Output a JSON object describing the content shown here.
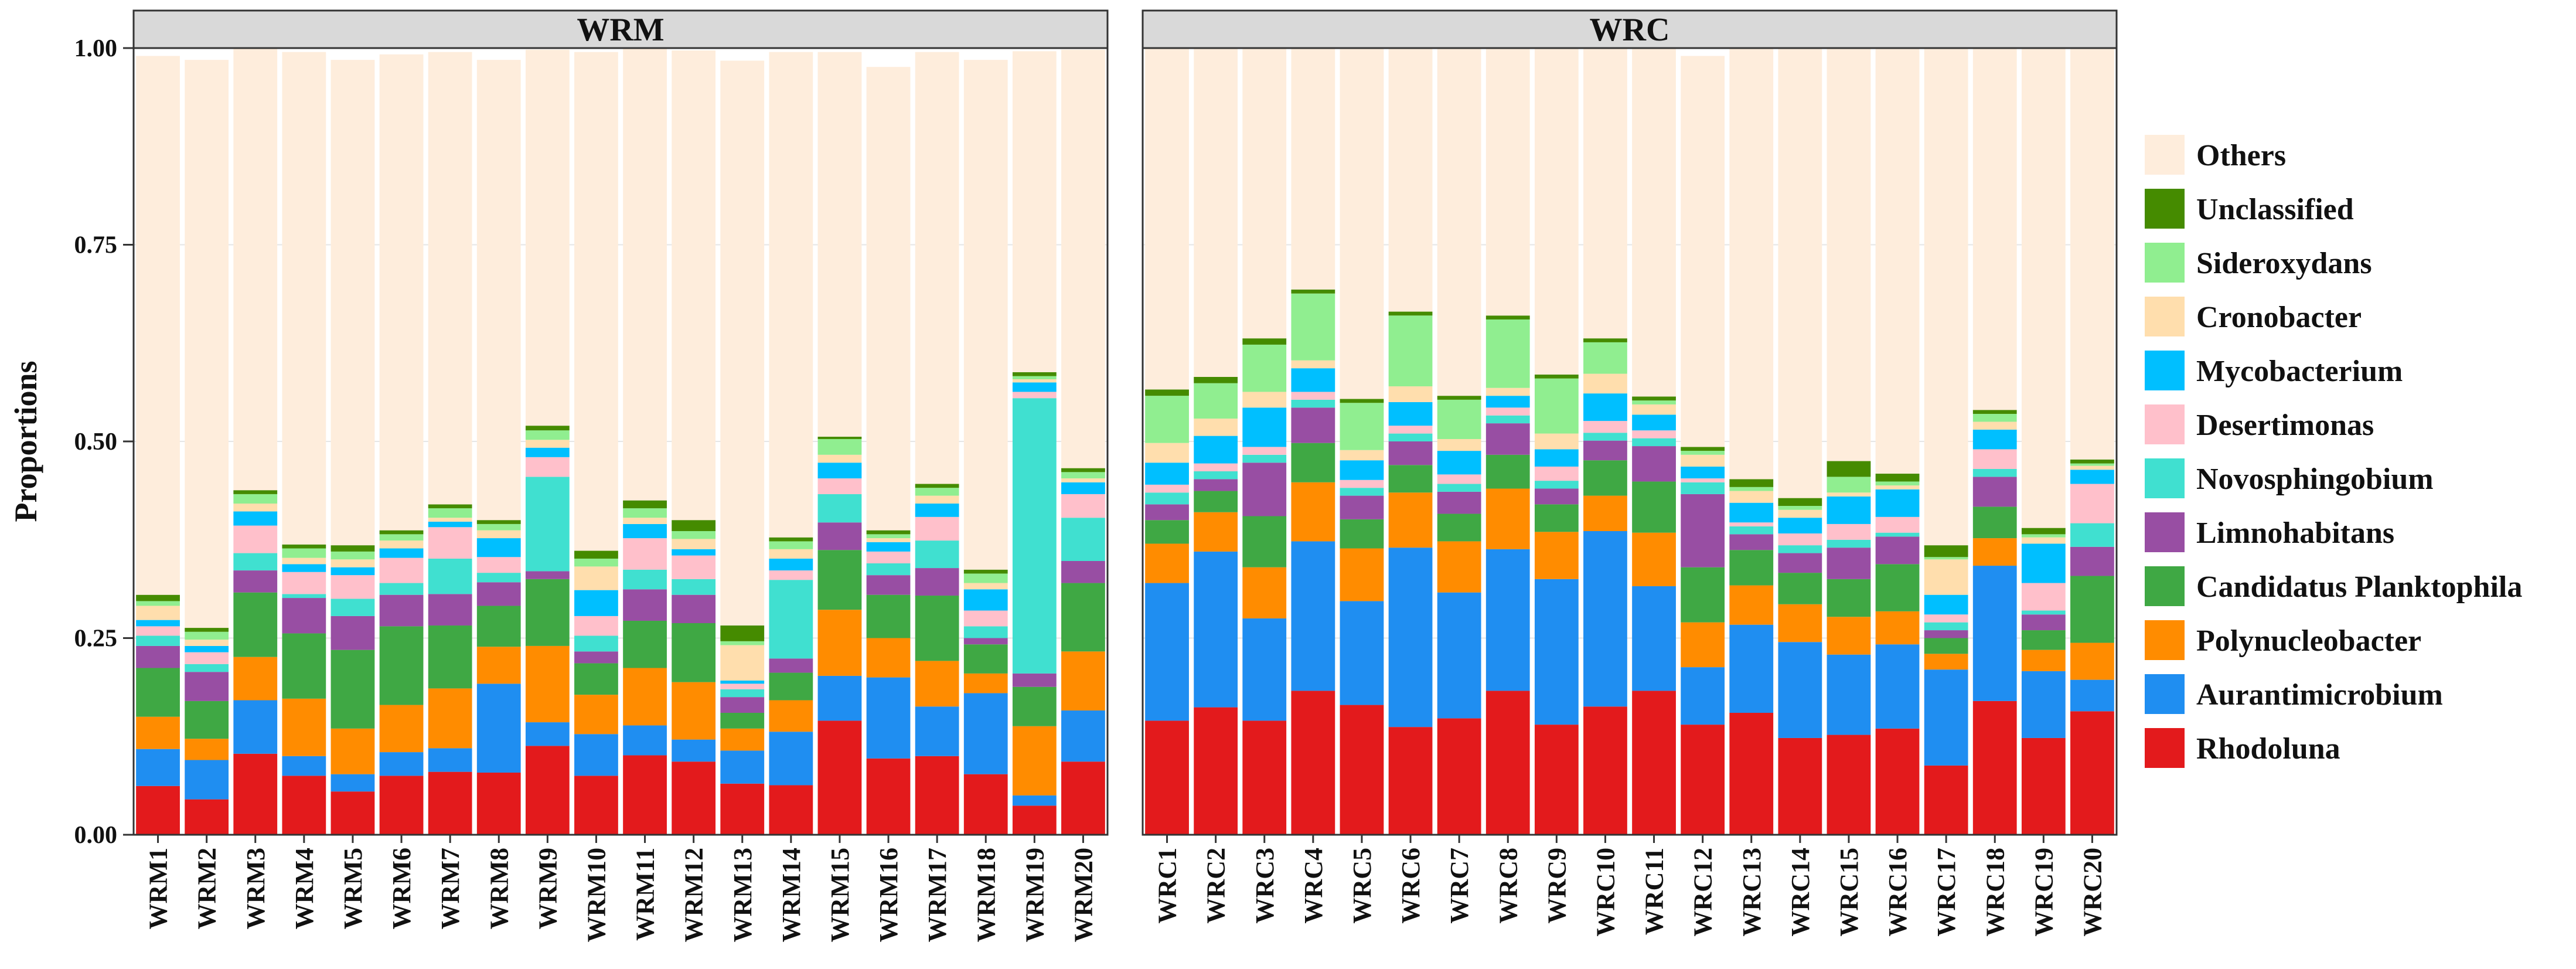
{
  "chart_data": {
    "type": "bar",
    "stacked": true,
    "ylabel": "Proportions",
    "ylim": [
      0,
      1
    ],
    "yticks": [
      "0.00",
      "0.25",
      "0.50",
      "0.75",
      "1.00"
    ],
    "legend_position": "right",
    "grid": true,
    "taxa": [
      "Rhodoluna",
      "Aurantimicrobium",
      "Polynucleobacter",
      "Candidatus Planktophila",
      "Limnohabitans",
      "Novosphingobium",
      "Desertimonas",
      "Mycobacterium",
      "Cronobacter",
      "Sideroxydans",
      "Unclassified",
      "Others"
    ],
    "legend_order": [
      "Others",
      "Unclassified",
      "Sideroxydans",
      "Cronobacter",
      "Mycobacterium",
      "Desertimonas",
      "Novosphingobium",
      "Limnohabitans",
      "Candidatus Planktophila",
      "Polynucleobacter",
      "Aurantimicrobium",
      "Rhodoluna"
    ],
    "colors": {
      "Rhodoluna": "#e31a1c",
      "Aurantimicrobium": "#1f8ef1",
      "Polynucleobacter": "#ff8c00",
      "Candidatus Planktophila": "#3fa844",
      "Limnohabitans": "#984ea3",
      "Novosphingobium": "#40e0d0",
      "Desertimonas": "#ffc0cb",
      "Mycobacterium": "#00bfff",
      "Cronobacter": "#ffdead",
      "Sideroxydans": "#90ee90",
      "Unclassified": "#458b00",
      "Others": "#feeddc"
    },
    "panels": [
      {
        "title": "WRM",
        "categories": [
          "WRM1",
          "WRM2",
          "WRM3",
          "WRM4",
          "WRM5",
          "WRM6",
          "WRM7",
          "WRM8",
          "WRM9",
          "WRM10",
          "WRM11",
          "WRM12",
          "WRM13",
          "WRM14",
          "WRM15",
          "WRM16",
          "WRM17",
          "WRM18",
          "WRM19",
          "WRM20"
        ],
        "series": [
          {
            "name": "Rhodoluna",
            "values": [
              0.062,
              0.045,
              0.103,
              0.075,
              0.055,
              0.075,
              0.08,
              0.079,
              0.113,
              0.075,
              0.101,
              0.093,
              0.065,
              0.063,
              0.145,
              0.097,
              0.1,
              0.077,
              0.037,
              0.093
            ]
          },
          {
            "name": "Aurantimicrobium",
            "values": [
              0.047,
              0.05,
              0.068,
              0.025,
              0.022,
              0.03,
              0.03,
              0.113,
              0.03,
              0.053,
              0.038,
              0.028,
              0.042,
              0.068,
              0.057,
              0.103,
              0.063,
              0.103,
              0.013,
              0.065
            ]
          },
          {
            "name": "Polynucleobacter",
            "values": [
              0.041,
              0.027,
              0.055,
              0.073,
              0.058,
              0.06,
              0.076,
              0.047,
              0.097,
              0.05,
              0.073,
              0.073,
              0.028,
              0.04,
              0.084,
              0.05,
              0.058,
              0.025,
              0.088,
              0.075
            ]
          },
          {
            "name": "Candidatus Planktophila",
            "values": [
              0.062,
              0.048,
              0.082,
              0.083,
              0.1,
              0.1,
              0.08,
              0.052,
              0.085,
              0.04,
              0.06,
              0.075,
              0.02,
              0.035,
              0.076,
              0.055,
              0.083,
              0.037,
              0.05,
              0.087
            ]
          },
          {
            "name": "Limnohabitans",
            "values": [
              0.028,
              0.037,
              0.028,
              0.045,
              0.043,
              0.04,
              0.04,
              0.03,
              0.01,
              0.015,
              0.04,
              0.036,
              0.02,
              0.018,
              0.035,
              0.025,
              0.035,
              0.008,
              0.017,
              0.028
            ]
          },
          {
            "name": "Novosphingobium",
            "values": [
              0.013,
              0.01,
              0.022,
              0.005,
              0.022,
              0.015,
              0.045,
              0.012,
              0.12,
              0.02,
              0.025,
              0.02,
              0.01,
              0.1,
              0.036,
              0.015,
              0.035,
              0.015,
              0.35,
              0.055
            ]
          },
          {
            "name": "Desertimonas",
            "values": [
              0.012,
              0.015,
              0.035,
              0.028,
              0.03,
              0.032,
              0.04,
              0.02,
              0.025,
              0.025,
              0.04,
              0.03,
              0.007,
              0.012,
              0.02,
              0.015,
              0.03,
              0.02,
              0.008,
              0.03
            ]
          },
          {
            "name": "Mycobacterium",
            "values": [
              0.008,
              0.008,
              0.018,
              0.01,
              0.01,
              0.012,
              0.007,
              0.024,
              0.012,
              0.033,
              0.018,
              0.008,
              0.004,
              0.015,
              0.02,
              0.012,
              0.017,
              0.027,
              0.012,
              0.015
            ]
          },
          {
            "name": "Cronobacter",
            "values": [
              0.018,
              0.008,
              0.01,
              0.008,
              0.01,
              0.01,
              0.005,
              0.01,
              0.01,
              0.03,
              0.008,
              0.013,
              0.045,
              0.012,
              0.01,
              0.005,
              0.01,
              0.008,
              0.004,
              0.005
            ]
          },
          {
            "name": "Sideroxydans",
            "values": [
              0.006,
              0.01,
              0.012,
              0.012,
              0.01,
              0.008,
              0.012,
              0.008,
              0.012,
              0.01,
              0.012,
              0.01,
              0.005,
              0.01,
              0.02,
              0.005,
              0.01,
              0.012,
              0.004,
              0.008
            ]
          },
          {
            "name": "Unclassified",
            "values": [
              0.008,
              0.005,
              0.005,
              0.005,
              0.008,
              0.005,
              0.005,
              0.005,
              0.006,
              0.01,
              0.01,
              0.014,
              0.02,
              0.005,
              0.003,
              0.005,
              0.005,
              0.005,
              0.005,
              0.005
            ]
          },
          {
            "name": "Others",
            "values": [
              0.685,
              0.722,
              0.562,
              0.626,
              0.617,
              0.605,
              0.575,
              0.585,
              0.478,
              0.634,
              0.575,
              0.597,
              0.718,
              0.617,
              0.489,
              0.589,
              0.549,
              0.648,
              0.408,
              0.532
            ]
          }
        ]
      },
      {
        "title": "WRC",
        "categories": [
          "WRC1",
          "WRC2",
          "WRC3",
          "WRC4",
          "WRC5",
          "WRC6",
          "WRC7",
          "WRC8",
          "WRC9",
          "WRC10",
          "WRC11",
          "WRC12",
          "WRC13",
          "WRC14",
          "WRC15",
          "WRC16",
          "WRC17",
          "WRC18",
          "WRC19",
          "WRC20"
        ],
        "series": [
          {
            "name": "Rhodoluna",
            "values": [
              0.145,
              0.162,
              0.145,
              0.183,
              0.165,
              0.137,
              0.148,
              0.183,
              0.14,
              0.163,
              0.183,
              0.14,
              0.155,
              0.123,
              0.127,
              0.135,
              0.088,
              0.17,
              0.123,
              0.157
            ]
          },
          {
            "name": "Aurantimicrobium",
            "values": [
              0.175,
              0.198,
              0.13,
              0.19,
              0.132,
              0.228,
              0.16,
              0.18,
              0.185,
              0.223,
              0.133,
              0.073,
              0.112,
              0.122,
              0.102,
              0.107,
              0.122,
              0.172,
              0.085,
              0.04
            ]
          },
          {
            "name": "Polynucleobacter",
            "values": [
              0.05,
              0.05,
              0.065,
              0.075,
              0.067,
              0.07,
              0.065,
              0.077,
              0.06,
              0.045,
              0.068,
              0.057,
              0.05,
              0.048,
              0.048,
              0.042,
              0.02,
              0.035,
              0.027,
              0.047
            ]
          },
          {
            "name": "Candidatus Planktophila",
            "values": [
              0.03,
              0.027,
              0.065,
              0.05,
              0.037,
              0.035,
              0.035,
              0.043,
              0.035,
              0.045,
              0.065,
              0.07,
              0.045,
              0.04,
              0.048,
              0.06,
              0.02,
              0.04,
              0.025,
              0.085
            ]
          },
          {
            "name": "Limnohabitans",
            "values": [
              0.02,
              0.015,
              0.068,
              0.045,
              0.03,
              0.03,
              0.028,
              0.04,
              0.02,
              0.025,
              0.045,
              0.093,
              0.02,
              0.025,
              0.04,
              0.035,
              0.01,
              0.038,
              0.02,
              0.037
            ]
          },
          {
            "name": "Novosphingobium",
            "values": [
              0.015,
              0.01,
              0.01,
              0.01,
              0.01,
              0.01,
              0.01,
              0.01,
              0.01,
              0.01,
              0.01,
              0.015,
              0.01,
              0.01,
              0.01,
              0.005,
              0.01,
              0.01,
              0.005,
              0.03
            ]
          },
          {
            "name": "Desertimonas",
            "values": [
              0.01,
              0.01,
              0.01,
              0.01,
              0.01,
              0.01,
              0.012,
              0.01,
              0.018,
              0.015,
              0.01,
              0.005,
              0.005,
              0.015,
              0.02,
              0.02,
              0.01,
              0.025,
              0.035,
              0.05
            ]
          },
          {
            "name": "Mycobacterium",
            "values": [
              0.028,
              0.035,
              0.05,
              0.03,
              0.025,
              0.03,
              0.03,
              0.015,
              0.022,
              0.035,
              0.02,
              0.015,
              0.025,
              0.02,
              0.035,
              0.035,
              0.025,
              0.025,
              0.05,
              0.018
            ]
          },
          {
            "name": "Cronobacter",
            "values": [
              0.025,
              0.022,
              0.02,
              0.01,
              0.013,
              0.02,
              0.015,
              0.01,
              0.02,
              0.025,
              0.013,
              0.015,
              0.015,
              0.01,
              0.005,
              0.005,
              0.045,
              0.01,
              0.008,
              0.005
            ]
          },
          {
            "name": "Sideroxydans",
            "values": [
              0.06,
              0.045,
              0.06,
              0.085,
              0.06,
              0.09,
              0.05,
              0.087,
              0.07,
              0.04,
              0.005,
              0.005,
              0.005,
              0.005,
              0.02,
              0.005,
              0.003,
              0.01,
              0.004,
              0.003
            ]
          },
          {
            "name": "Unclassified",
            "values": [
              0.008,
              0.008,
              0.008,
              0.005,
              0.005,
              0.005,
              0.005,
              0.005,
              0.005,
              0.005,
              0.005,
              0.005,
              0.01,
              0.01,
              0.02,
              0.01,
              0.015,
              0.005,
              0.008,
              0.005
            ]
          },
          {
            "name": "Others",
            "values": [
              0.434,
              0.418,
              0.369,
              0.307,
              0.446,
              0.335,
              0.442,
              0.34,
              0.415,
              0.369,
              0.443,
              0.497,
              0.548,
              0.572,
              0.525,
              0.541,
              0.632,
              0.46,
              0.61,
              0.523
            ]
          }
        ]
      }
    ]
  }
}
